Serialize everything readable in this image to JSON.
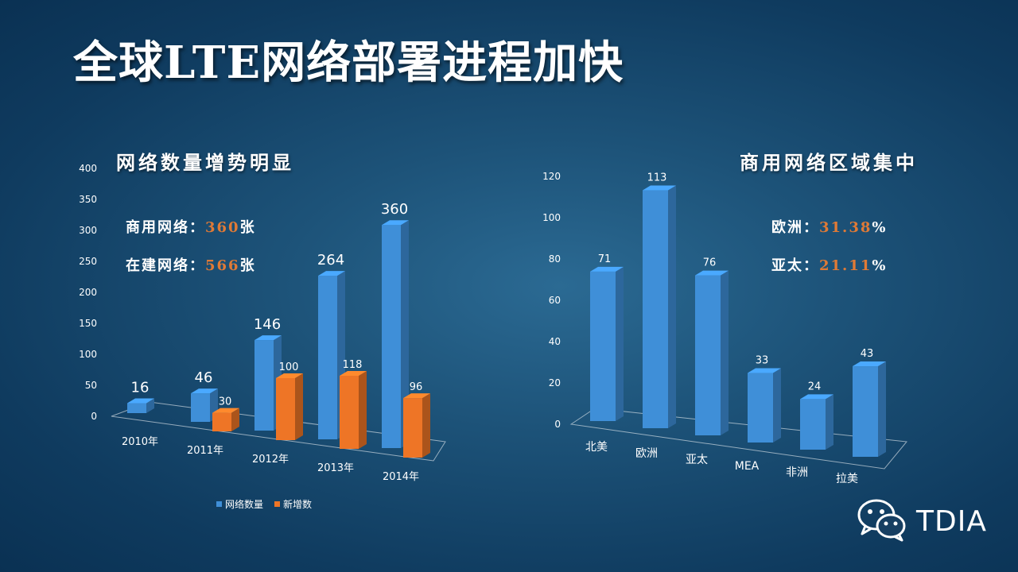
{
  "slide": {
    "title": "全球LTE网络部署进程加快"
  },
  "left_panel": {
    "subtitle": "网络数量增势明显",
    "stat1": {
      "label": "商用网络：",
      "value": "360",
      "unit": "张"
    },
    "stat2": {
      "label": "在建网络：",
      "value": "566",
      "unit": "张"
    }
  },
  "right_panel": {
    "subtitle": "商用网络区域集中",
    "stat1": {
      "label": "欧洲：",
      "value": "31.38",
      "unit": "%"
    },
    "stat2": {
      "label": "亚太：",
      "value": "21.11",
      "unit": "%"
    }
  },
  "brand": {
    "text": "TDIA",
    "icon": "wechat-icon"
  },
  "colors": {
    "blue": "#3f8fd8",
    "orange": "#ee7526",
    "highlight": "#e07a36"
  },
  "chart_data": [
    {
      "type": "bar",
      "categories": [
        "2010年",
        "2011年",
        "2012年",
        "2013年",
        "2014年"
      ],
      "series": [
        {
          "name": "网络数量",
          "values": [
            16,
            46,
            146,
            264,
            360
          ],
          "color": "#3f8fd8"
        },
        {
          "name": "新增数",
          "values": [
            null,
            30,
            100,
            118,
            96
          ],
          "color": "#ee7526"
        }
      ],
      "ylim": [
        0,
        400
      ],
      "yticks": [
        0,
        50,
        100,
        150,
        200,
        250,
        300,
        350,
        400
      ],
      "legend": "bottom",
      "grid": false
    },
    {
      "type": "bar",
      "categories": [
        "北美",
        "欧洲",
        "亚太",
        "MEA",
        "非洲",
        "拉美"
      ],
      "series": [
        {
          "values": [
            71,
            113,
            76,
            33,
            24,
            43
          ],
          "color": "#3f8fd8"
        }
      ],
      "ylim": [
        0,
        120
      ],
      "yticks": [
        0,
        20,
        40,
        60,
        80,
        100,
        120
      ],
      "grid": false
    }
  ]
}
